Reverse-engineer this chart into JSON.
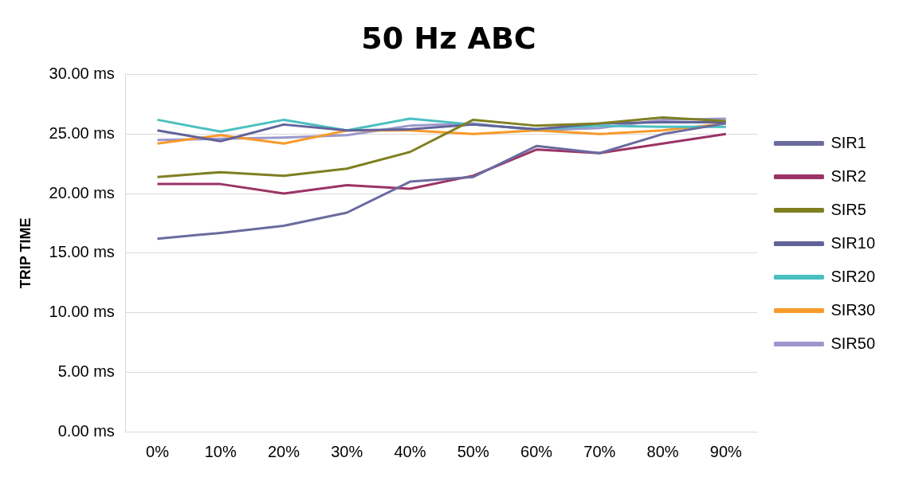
{
  "chart_data": {
    "type": "line",
    "title": "50 Hz ABC",
    "ylabel": "TRIP TIME",
    "categories": [
      "0%",
      "10%",
      "20%",
      "30%",
      "40%",
      "50%",
      "60%",
      "70%",
      "80%",
      "90%"
    ],
    "ylim": [
      0,
      30
    ],
    "yticks": [
      {
        "value": 0,
        "label": "0.00 ms"
      },
      {
        "value": 5,
        "label": "5.00 ms"
      },
      {
        "value": 10,
        "label": "10.00 ms"
      },
      {
        "value": 15,
        "label": "15.00 ms"
      },
      {
        "value": 20,
        "label": "20.00 ms"
      },
      {
        "value": 25,
        "label": "25.00 ms"
      },
      {
        "value": 30,
        "label": "30.00 ms"
      }
    ],
    "grid": "y",
    "legend": "right",
    "marker": "none",
    "series": [
      {
        "name": "SIR1",
        "color": "#6b6b9e",
        "values": [
          16.2,
          16.7,
          17.3,
          18.4,
          21.0,
          21.4,
          24.0,
          23.4,
          25.0,
          25.9
        ]
      },
      {
        "name": "SIR2",
        "color": "#9b3366",
        "values": [
          20.8,
          20.8,
          20.0,
          20.7,
          20.4,
          21.5,
          23.7,
          23.4,
          24.2,
          25.0
        ]
      },
      {
        "name": "SIR5",
        "color": "#7f7f22",
        "values": [
          21.4,
          21.8,
          21.5,
          22.1,
          23.5,
          26.2,
          25.7,
          25.9,
          26.4,
          26.1
        ]
      },
      {
        "name": "SIR10",
        "color": "#62629a",
        "values": [
          25.3,
          24.4,
          25.8,
          25.3,
          25.4,
          25.8,
          25.4,
          25.9,
          26.0,
          26.0
        ]
      },
      {
        "name": "SIR20",
        "color": "#4bbfc0",
        "values": [
          26.2,
          25.2,
          26.2,
          25.3,
          26.3,
          25.8,
          25.4,
          25.7,
          25.6,
          25.6
        ]
      },
      {
        "name": "SIR30",
        "color": "#f79a2a",
        "values": [
          24.2,
          24.9,
          24.2,
          25.3,
          25.3,
          25.0,
          25.3,
          25.0,
          25.3,
          25.9
        ]
      },
      {
        "name": "SIR50",
        "color": "#9c98cc",
        "values": [
          24.5,
          24.6,
          24.7,
          24.9,
          25.7,
          25.9,
          25.3,
          25.5,
          26.2,
          26.3
        ]
      }
    ]
  }
}
